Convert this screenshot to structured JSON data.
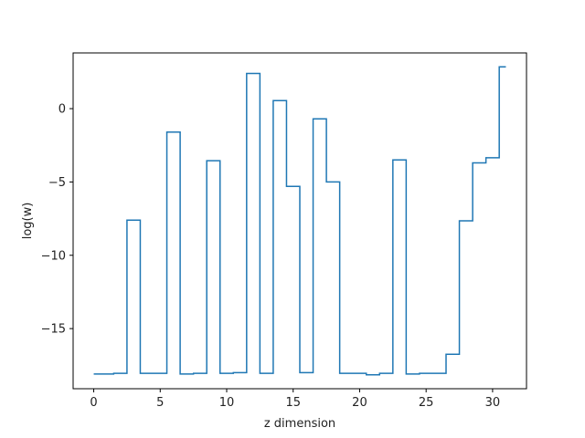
{
  "chart_data": {
    "type": "line",
    "drawstyle": "steps-mid",
    "title": "",
    "xlabel": "z dimension",
    "ylabel": "log(w)",
    "xlim": [
      -1.55,
      32.55
    ],
    "ylim": [
      -19.1,
      3.8
    ],
    "xticks": [
      0,
      5,
      10,
      15,
      20,
      25,
      30
    ],
    "yticks": [
      -15,
      -10,
      -5,
      0
    ],
    "grid": false,
    "series": [
      {
        "color": "#1f77b4",
        "x": [
          0,
          1,
          2,
          3,
          4,
          5,
          6,
          7,
          8,
          9,
          10,
          11,
          12,
          13,
          14,
          15,
          16,
          17,
          18,
          19,
          20,
          21,
          22,
          23,
          24,
          25,
          26,
          27,
          28,
          29,
          30,
          31
        ],
        "y": [
          -18.1,
          -18.1,
          -18.05,
          -7.6,
          -18.05,
          -18.05,
          -1.6,
          -18.1,
          -18.05,
          -3.55,
          -18.05,
          -18.0,
          2.4,
          -18.05,
          0.55,
          -5.3,
          -18.0,
          -0.7,
          -5.0,
          -18.05,
          -18.05,
          -18.15,
          -18.05,
          -3.5,
          -18.1,
          -18.05,
          -18.05,
          -16.75,
          -7.65,
          -3.7,
          -3.35,
          2.85
        ]
      }
    ]
  }
}
